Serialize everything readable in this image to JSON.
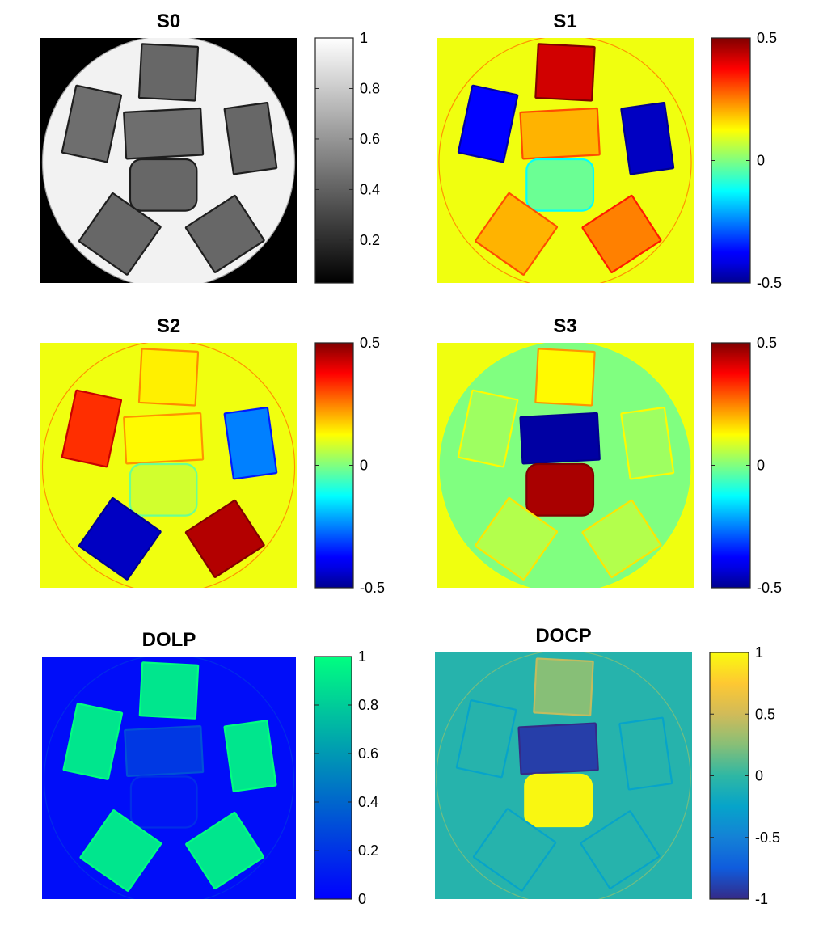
{
  "chart_data": [
    {
      "type": "heatmap",
      "title": "S0",
      "colormap": "gray",
      "colorbar": {
        "range": [
          0.03,
          1.0
        ],
        "ticks": [
          0.2,
          0.4,
          0.6,
          0.8,
          1
        ],
        "tick_labels": [
          "0.2",
          "0.4",
          "0.6",
          "0.8",
          "1"
        ]
      },
      "values": {
        "background": 0.03,
        "disk": 0.95,
        "samples": [
          0.42,
          0.45,
          0.45,
          0.42,
          0.42,
          0.42,
          0.42
        ]
      }
    },
    {
      "type": "heatmap",
      "title": "S1",
      "colormap": "jet",
      "colorbar": {
        "range": [
          -0.5,
          0.5
        ],
        "ticks": [
          -0.5,
          0,
          0.5
        ],
        "tick_labels": [
          "-0.5",
          "0",
          "0.5"
        ]
      },
      "values": {
        "background": 0.11,
        "disk": 0.11,
        "samples": [
          0.42,
          -0.38,
          0.2,
          -0.45,
          -0.02,
          0.2,
          0.25
        ]
      }
    },
    {
      "type": "heatmap",
      "title": "S2",
      "colormap": "jet",
      "colorbar": {
        "range": [
          -0.5,
          0.5
        ],
        "ticks": [
          -0.5,
          0,
          0.5
        ],
        "tick_labels": [
          "-0.5",
          "0",
          "0.5"
        ]
      },
      "values": {
        "background": 0.11,
        "disk": 0.11,
        "samples": [
          0.14,
          0.33,
          0.13,
          -0.25,
          0.08,
          -0.45,
          0.45
        ]
      }
    },
    {
      "type": "heatmap",
      "title": "S3",
      "colormap": "jet",
      "colorbar": {
        "range": [
          -0.5,
          0.5
        ],
        "ticks": [
          -0.5,
          0,
          0.5
        ],
        "tick_labels": [
          "-0.5",
          "0",
          "0.5"
        ]
      },
      "values": {
        "background": 0.11,
        "disk": 0.0,
        "samples": [
          0.13,
          0.03,
          -0.48,
          0.03,
          0.46,
          0.05,
          0.05
        ]
      }
    },
    {
      "type": "heatmap",
      "title": "DOLP",
      "colormap": "winter",
      "colorbar": {
        "range": [
          0,
          1
        ],
        "ticks": [
          0,
          0.2,
          0.4,
          0.6,
          0.8,
          1
        ],
        "tick_labels": [
          "0",
          "0.2",
          "0.4",
          "0.6",
          "0.8",
          "1"
        ]
      },
      "values": {
        "background": 0.05,
        "disk": 0.05,
        "samples": [
          0.9,
          0.9,
          0.22,
          0.9,
          0.08,
          0.9,
          0.9
        ]
      }
    },
    {
      "type": "heatmap",
      "title": "DOCP",
      "colormap": "parula",
      "colorbar": {
        "range": [
          -1,
          1
        ],
        "ticks": [
          -1,
          -0.5,
          0,
          0.5,
          1
        ],
        "tick_labels": [
          "-1",
          "-0.5",
          "0",
          "0.5",
          "1"
        ]
      },
      "values": {
        "background": -0.05,
        "disk": -0.05,
        "samples": [
          0.25,
          -0.05,
          -0.9,
          -0.05,
          0.98,
          -0.05,
          -0.05
        ]
      }
    }
  ]
}
